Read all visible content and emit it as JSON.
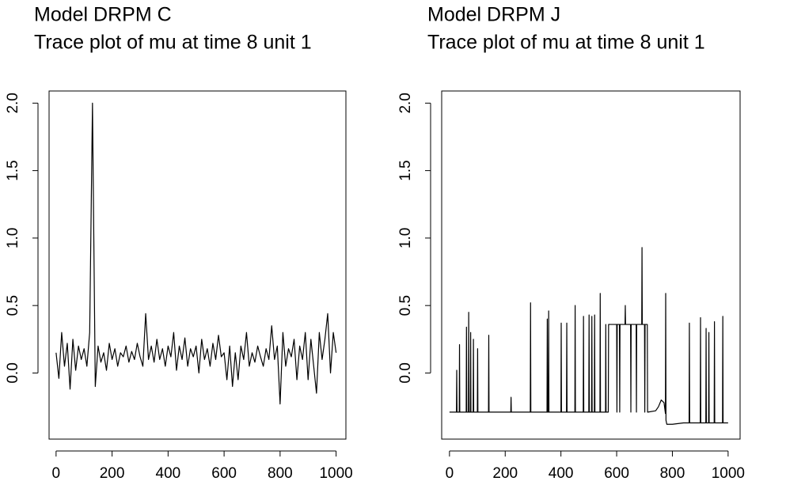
{
  "chart_data": [
    {
      "type": "line",
      "title": "Model DRPM C",
      "subtitle": "Trace plot of mu at time 8 unit 1",
      "xlim": [
        -25,
        1035
      ],
      "ylim": [
        -0.49,
        2.09
      ],
      "xticks": [
        0,
        200,
        400,
        600,
        800,
        1000
      ],
      "yticks": [
        {
          "value": 0,
          "label": "0.0"
        },
        {
          "value": 0.5,
          "label": "0.5"
        },
        {
          "value": 1,
          "label": "1.0"
        },
        1.5,
        {
          "value": 2,
          "label": "2.0"
        }
      ],
      "series": [
        {
          "color": "#000000",
          "x": [
            0,
            10,
            20,
            30,
            40,
            50,
            60,
            70,
            80,
            90,
            100,
            110,
            120,
            130,
            140,
            150,
            160,
            170,
            180,
            190,
            200,
            210,
            220,
            230,
            240,
            250,
            260,
            270,
            280,
            290,
            300,
            310,
            320,
            330,
            340,
            350,
            360,
            370,
            380,
            390,
            400,
            410,
            420,
            430,
            440,
            450,
            460,
            470,
            480,
            490,
            500,
            510,
            520,
            530,
            540,
            550,
            560,
            570,
            580,
            590,
            600,
            610,
            620,
            630,
            640,
            650,
            660,
            670,
            680,
            690,
            700,
            710,
            720,
            730,
            740,
            750,
            760,
            770,
            780,
            790,
            800,
            810,
            820,
            830,
            840,
            850,
            860,
            870,
            880,
            890,
            900,
            910,
            920,
            930,
            940,
            950,
            960,
            970,
            980,
            990,
            1000
          ],
          "values": [
            0.15,
            -0.04,
            0.3,
            0.05,
            0.22,
            -0.12,
            0.25,
            0.02,
            0.2,
            0.1,
            0.18,
            0.05,
            0.3,
            2.0,
            -0.1,
            0.2,
            0.08,
            0.15,
            0.02,
            0.22,
            0.1,
            0.18,
            0.05,
            0.15,
            0.12,
            0.2,
            0.08,
            0.16,
            0.1,
            0.22,
            0.12,
            0.05,
            0.44,
            0.1,
            0.2,
            0.08,
            0.25,
            0.1,
            0.18,
            0.05,
            0.2,
            0.12,
            0.3,
            0.02,
            0.2,
            0.1,
            0.26,
            0.05,
            0.18,
            0.12,
            0.2,
            0.0,
            0.25,
            0.1,
            0.18,
            0.05,
            0.22,
            0.1,
            0.28,
            0.12,
            0.15,
            -0.05,
            0.2,
            -0.1,
            0.15,
            -0.05,
            0.2,
            0.1,
            0.3,
            0.05,
            0.15,
            0.08,
            0.2,
            0.12,
            0.05,
            0.18,
            0.1,
            0.35,
            0.1,
            0.2,
            -0.23,
            0.3,
            0.05,
            0.18,
            0.12,
            0.25,
            -0.05,
            0.2,
            0.1,
            0.3,
            -0.05,
            0.25,
            0.05,
            -0.15,
            0.3,
            0.1,
            0.25,
            0.44,
            0.0,
            0.3,
            0.15
          ]
        }
      ]
    },
    {
      "type": "line",
      "title": "Model DRPM J",
      "subtitle": "Trace plot of mu at time 8 unit 1",
      "xlim": [
        -28,
        1043
      ],
      "ylim": [
        -0.49,
        2.09
      ],
      "xticks": [
        0,
        200,
        400,
        600,
        800,
        1000
      ],
      "yticks": [
        {
          "value": 0,
          "label": "0.0"
        },
        {
          "value": 0.5,
          "label": "0.5"
        },
        {
          "value": 1,
          "label": "1.0"
        },
        1.5,
        {
          "value": 2,
          "label": "2.0"
        }
      ],
      "series": [
        {
          "color": "#000000",
          "x": [
            0,
            25,
            26,
            27,
            35,
            36,
            37,
            60,
            61,
            62,
            68,
            69,
            70,
            75,
            76,
            77,
            85,
            86,
            87,
            100,
            101,
            102,
            140,
            141,
            142,
            200,
            220,
            221,
            222,
            290,
            291,
            292,
            350,
            351,
            352,
            355,
            356,
            357,
            400,
            401,
            402,
            420,
            421,
            422,
            450,
            451,
            452,
            480,
            481,
            482,
            500,
            501,
            502,
            510,
            511,
            512,
            520,
            521,
            522,
            540,
            541,
            542,
            560,
            561,
            562,
            570,
            571,
            572,
            600,
            601,
            602,
            610,
            611,
            612,
            630,
            631,
            632,
            650,
            651,
            652,
            670,
            671,
            672,
            690,
            691,
            692,
            700,
            701,
            702,
            710,
            711,
            712,
            740,
            750,
            760,
            770,
            775,
            776,
            777,
            780,
            800,
            840,
            860,
            861,
            862,
            900,
            901,
            902,
            920,
            921,
            922,
            930,
            931,
            932,
            950,
            951,
            952,
            980,
            981,
            982,
            1000
          ],
          "values": [
            -0.29,
            -0.29,
            0.02,
            -0.29,
            -0.29,
            0.21,
            -0.29,
            -0.29,
            0.34,
            -0.29,
            -0.29,
            0.45,
            -0.29,
            -0.29,
            0.3,
            -0.29,
            -0.29,
            0.25,
            -0.29,
            -0.29,
            0.18,
            -0.29,
            -0.29,
            0.28,
            -0.29,
            -0.29,
            -0.29,
            -0.18,
            -0.29,
            -0.29,
            0.52,
            -0.29,
            -0.29,
            0.4,
            -0.29,
            -0.29,
            0.46,
            -0.29,
            -0.29,
            0.37,
            -0.29,
            -0.29,
            0.37,
            -0.29,
            -0.29,
            0.5,
            -0.29,
            -0.29,
            0.42,
            -0.29,
            -0.29,
            0.43,
            -0.29,
            -0.29,
            0.42,
            -0.29,
            -0.29,
            0.43,
            -0.29,
            -0.29,
            0.59,
            -0.29,
            -0.29,
            0.36,
            -0.29,
            -0.29,
            0.36,
            0.36,
            0.36,
            -0.29,
            0.36,
            0.36,
            -0.29,
            0.36,
            0.36,
            0.5,
            0.36,
            0.36,
            -0.29,
            0.36,
            0.36,
            -0.29,
            0.36,
            0.36,
            0.93,
            0.36,
            0.36,
            -0.29,
            0.36,
            0.36,
            -0.29,
            -0.29,
            -0.28,
            -0.25,
            -0.2,
            -0.22,
            -0.3,
            0.59,
            -0.35,
            -0.38,
            -0.38,
            -0.37,
            -0.37,
            0.37,
            -0.37,
            -0.37,
            0.41,
            -0.37,
            -0.37,
            0.33,
            -0.37,
            -0.37,
            0.3,
            -0.37,
            -0.37,
            0.38,
            -0.37,
            -0.37,
            0.42,
            -0.37,
            -0.37
          ]
        }
      ]
    }
  ]
}
